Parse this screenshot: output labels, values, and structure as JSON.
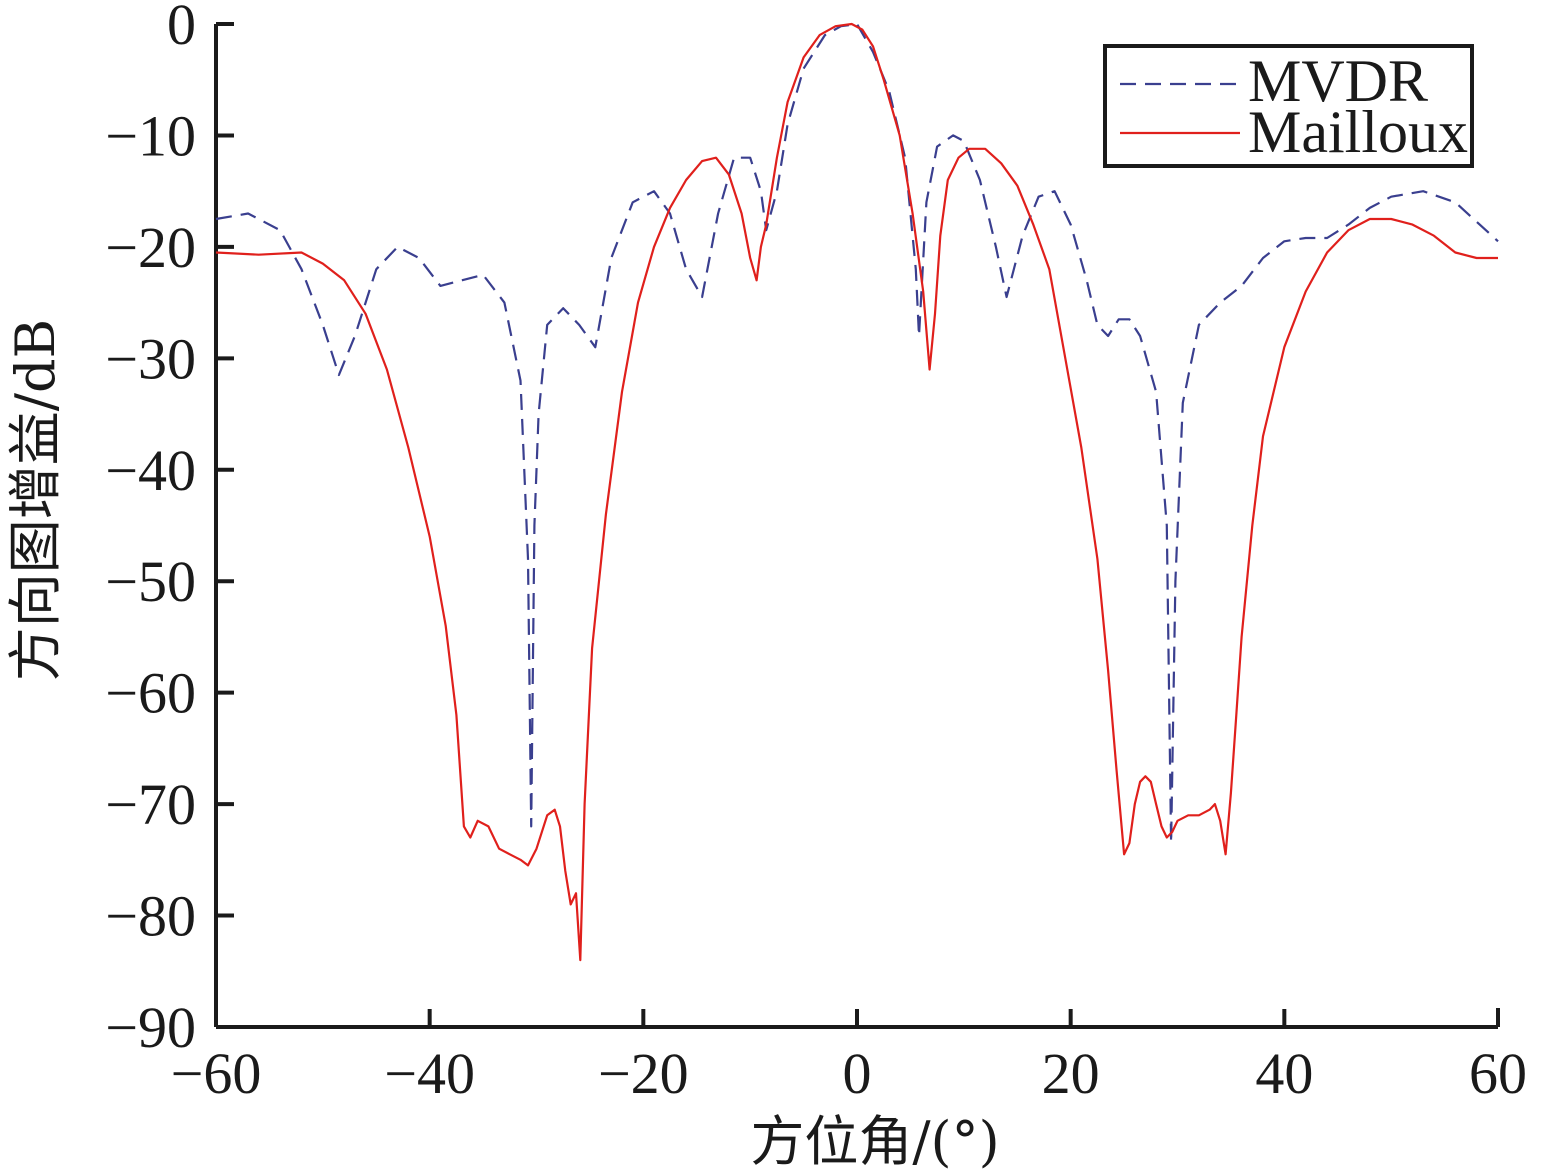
{
  "chart_data": {
    "type": "line",
    "title": "",
    "xlabel": "方位角/(°)",
    "ylabel": "方向图增益/dB",
    "xlim": [
      -60,
      60
    ],
    "ylim": [
      -90,
      0
    ],
    "x_ticks": [
      -60,
      -40,
      -20,
      0,
      20,
      40,
      60
    ],
    "x_tick_labels": [
      "−60",
      "−40",
      "−20",
      "0",
      "20",
      "40",
      "60"
    ],
    "y_ticks": [
      0,
      -10,
      -20,
      -30,
      -40,
      -50,
      -60,
      -70,
      -80,
      -90
    ],
    "y_tick_labels": [
      "0",
      "−10",
      "−20",
      "−30",
      "−40",
      "−50",
      "−60",
      "−70",
      "−80",
      "−90"
    ],
    "grid": false,
    "legend_position": "top-right",
    "series": [
      {
        "name": "MVDR",
        "color": "#3a3f8f",
        "dash": "dashed",
        "x": [
          -60,
          -57,
          -54,
          -52,
          -50,
          -48.5,
          -47,
          -45,
          -43,
          -41,
          -39,
          -37,
          -35,
          -33,
          -31.5,
          -30.8,
          -30.5,
          -30.2,
          -29.8,
          -29,
          -27.5,
          -26,
          -24.5,
          -23,
          -21,
          -19,
          -17.5,
          -16,
          -14.5,
          -13,
          -11.5,
          -10,
          -9,
          -8.5,
          -7.5,
          -6.5,
          -5,
          -3,
          -1.5,
          0,
          1.5,
          3,
          4.5,
          5.5,
          5.8,
          6.5,
          7.5,
          9,
          10,
          11.5,
          13,
          14,
          15.5,
          17,
          18.5,
          20,
          21.5,
          22.5,
          23.5,
          24.5,
          25.5,
          26.5,
          28,
          29,
          29.4,
          29.8,
          30.5,
          32,
          34,
          36,
          38,
          40,
          42,
          44,
          46,
          48,
          50,
          53,
          56,
          60
        ],
        "y": [
          -17.5,
          -17,
          -18.5,
          -22,
          -27,
          -31.5,
          -28,
          -22,
          -20,
          -21,
          -23.5,
          -23,
          -22.5,
          -25,
          -32,
          -48,
          -72,
          -45,
          -35,
          -27,
          -25.5,
          -27,
          -29,
          -21,
          -16,
          -15,
          -17,
          -22,
          -24.5,
          -17,
          -12,
          -12,
          -15,
          -18.5,
          -15,
          -9,
          -4,
          -1,
          -0.2,
          0,
          -2.5,
          -6,
          -12,
          -22,
          -28,
          -16,
          -11,
          -10,
          -10.5,
          -14,
          -20,
          -24.5,
          -19,
          -15.5,
          -15,
          -18,
          -23,
          -27,
          -28,
          -26.5,
          -26.5,
          -28,
          -33,
          -45,
          -73.5,
          -50,
          -34,
          -27,
          -25,
          -23.5,
          -21,
          -19.5,
          -19.2,
          -19.2,
          -18,
          -16.5,
          -15.5,
          -15,
          -16,
          -19.5
        ]
      },
      {
        "name": "Mailloux",
        "color": "#e0201c",
        "dash": "solid",
        "x": [
          -60,
          -56,
          -52,
          -50,
          -48,
          -46,
          -44,
          -42,
          -40,
          -38.5,
          -37.5,
          -36.8,
          -36.2,
          -35.5,
          -34.5,
          -33.5,
          -32.5,
          -31.5,
          -30.8,
          -30,
          -29,
          -28.3,
          -27.8,
          -27.3,
          -26.8,
          -26.3,
          -25.9,
          -25.5,
          -24.8,
          -23.5,
          -22,
          -20.5,
          -19,
          -17.5,
          -16,
          -14.5,
          -13.2,
          -12,
          -10.8,
          -10,
          -9.4,
          -9,
          -8.5,
          -7.5,
          -6.5,
          -5,
          -3.5,
          -2,
          -0.5,
          0.5,
          1.5,
          2.5,
          4,
          5.2,
          6.2,
          6.8,
          7.3,
          7.8,
          8.5,
          9.5,
          10.5,
          12,
          13.5,
          15,
          16.5,
          18,
          19.5,
          21,
          22.5,
          23.5,
          24.3,
          25,
          25.5,
          26,
          26.5,
          27,
          27.5,
          28,
          28.5,
          29,
          29.5,
          30,
          31,
          32,
          33,
          33.5,
          34,
          34.5,
          35,
          35.5,
          36,
          37,
          38,
          40,
          42,
          44,
          46,
          48,
          50,
          52,
          54,
          56,
          58,
          60
        ],
        "y": [
          -20.5,
          -20.7,
          -20.5,
          -21.5,
          -23,
          -26,
          -31,
          -38,
          -46,
          -54,
          -62,
          -72,
          -73,
          -71.5,
          -72,
          -74,
          -74.5,
          -75,
          -75.5,
          -74,
          -71,
          -70.5,
          -72,
          -76,
          -79,
          -78,
          -84,
          -70,
          -56,
          -44,
          -33,
          -25,
          -20,
          -16.5,
          -14,
          -12.3,
          -12,
          -13.5,
          -17,
          -21,
          -23,
          -20,
          -18,
          -12,
          -7,
          -3,
          -1,
          -0.2,
          0,
          -0.5,
          -2,
          -5,
          -10,
          -17,
          -24,
          -31,
          -26,
          -19,
          -14,
          -12,
          -11.2,
          -11.2,
          -12.5,
          -14.5,
          -18,
          -22,
          -30,
          -38,
          -48,
          -58,
          -67,
          -74.5,
          -73.5,
          -70,
          -68,
          -67.5,
          -68,
          -70,
          -72,
          -73,
          -72.5,
          -71.5,
          -71,
          -71,
          -70.5,
          -70,
          -71.5,
          -74.5,
          -69,
          -62,
          -55,
          -45,
          -37,
          -29,
          -24,
          -20.5,
          -18.5,
          -17.5,
          -17.5,
          -18,
          -19,
          -20.5,
          -21,
          -21
        ]
      }
    ]
  }
}
